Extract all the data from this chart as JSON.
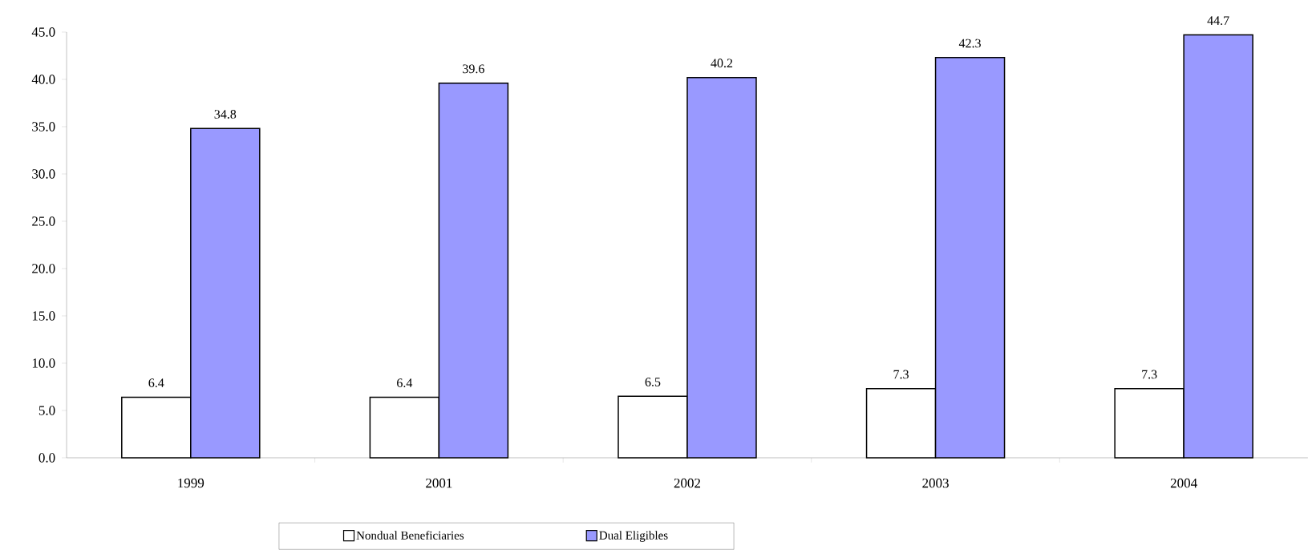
{
  "chart_data": {
    "type": "bar",
    "categories": [
      "1999",
      "2001",
      "2002",
      "2003",
      "2004"
    ],
    "series": [
      {
        "name": "Nondual Beneficiaries",
        "color": "#ffffff",
        "values": [
          6.4,
          6.4,
          6.5,
          7.3,
          7.3
        ]
      },
      {
        "name": "Dual Eligibles",
        "color": "#9999ff",
        "values": [
          34.8,
          39.6,
          40.2,
          42.3,
          44.7
        ]
      }
    ],
    "ylim": [
      0,
      45
    ],
    "yticks": [
      {
        "value": 0,
        "label": "0.0"
      },
      {
        "value": 5,
        "label": "5.0"
      },
      {
        "value": 10,
        "label": "10.0"
      },
      {
        "value": 15,
        "label": "15.0"
      },
      {
        "value": 20,
        "label": "20.0"
      },
      {
        "value": 25,
        "label": "25.0"
      },
      {
        "value": 30,
        "label": "30.0"
      },
      {
        "value": 35,
        "label": "35.0"
      },
      {
        "value": 40,
        "label": "40.0"
      },
      {
        "value": 45,
        "label": "45.0"
      }
    ],
    "data_labels": true,
    "legend": "bottom"
  }
}
